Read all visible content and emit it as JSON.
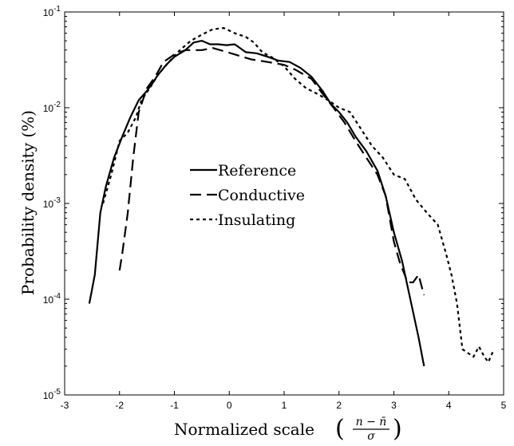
{
  "chart_data": {
    "type": "line",
    "title": "",
    "xlabel": "Normalized scale",
    "xlabel_formula": {
      "numerator": "n − n̄",
      "denominator": "σ"
    },
    "ylabel": "Probability density (%)",
    "xlim": [
      -3,
      5
    ],
    "ylim": [
      1e-05,
      0.1
    ],
    "yscale": "log",
    "grid": false,
    "legend_position": "center-left",
    "x_ticks": [
      "-3",
      "-2",
      "-1",
      "0",
      "1",
      "2",
      "3",
      "4",
      "5"
    ],
    "y_ticks": [
      {
        "base": "10",
        "exp": "-1",
        "value": 0.1
      },
      {
        "base": "10",
        "exp": "-2",
        "value": 0.01
      },
      {
        "base": "10",
        "exp": "-3",
        "value": 0.001
      },
      {
        "base": "10",
        "exp": "-4",
        "value": 0.0001
      },
      {
        "base": "10",
        "exp": "-5",
        "value": 1e-05
      }
    ],
    "series": [
      {
        "name": "Reference",
        "dash": "solid",
        "points": [
          [
            -2.55,
            9e-05
          ],
          [
            -2.45,
            0.00018
          ],
          [
            -2.35,
            0.0008
          ],
          [
            -2.25,
            0.0015
          ],
          [
            -2.1,
            0.003
          ],
          [
            -1.95,
            0.005
          ],
          [
            -1.8,
            0.008
          ],
          [
            -1.65,
            0.012
          ],
          [
            -1.5,
            0.015
          ],
          [
            -1.4,
            0.018
          ],
          [
            -1.3,
            0.022
          ],
          [
            -1.15,
            0.028
          ],
          [
            -1.0,
            0.034
          ],
          [
            -0.8,
            0.04
          ],
          [
            -0.65,
            0.048
          ],
          [
            -0.5,
            0.05
          ],
          [
            -0.35,
            0.046
          ],
          [
            -0.2,
            0.046
          ],
          [
            -0.05,
            0.045
          ],
          [
            0.1,
            0.046
          ],
          [
            0.3,
            0.038
          ],
          [
            0.5,
            0.037
          ],
          [
            0.7,
            0.034
          ],
          [
            0.9,
            0.031
          ],
          [
            1.1,
            0.03
          ],
          [
            1.3,
            0.026
          ],
          [
            1.5,
            0.021
          ],
          [
            1.7,
            0.015
          ],
          [
            1.85,
            0.011
          ],
          [
            2.0,
            0.009
          ],
          [
            2.15,
            0.007
          ],
          [
            2.3,
            0.005
          ],
          [
            2.5,
            0.0035
          ],
          [
            2.7,
            0.0022
          ],
          [
            2.85,
            0.0012
          ],
          [
            3.0,
            0.0005
          ],
          [
            3.15,
            0.00025
          ],
          [
            3.3,
            0.0001
          ],
          [
            3.45,
            4e-05
          ],
          [
            3.55,
            2e-05
          ]
        ]
      },
      {
        "name": "Conductive",
        "dash": "dashed",
        "points": [
          [
            -2.0,
            0.0002
          ],
          [
            -1.95,
            0.0003
          ],
          [
            -1.85,
            0.0008
          ],
          [
            -1.75,
            0.003
          ],
          [
            -1.65,
            0.009
          ],
          [
            -1.5,
            0.016
          ],
          [
            -1.35,
            0.021
          ],
          [
            -1.2,
            0.03
          ],
          [
            -1.0,
            0.036
          ],
          [
            -0.8,
            0.04
          ],
          [
            -0.5,
            0.04
          ],
          [
            -0.3,
            0.042
          ],
          [
            -0.1,
            0.039
          ],
          [
            0.1,
            0.036
          ],
          [
            0.4,
            0.032
          ],
          [
            0.7,
            0.03
          ],
          [
            1.0,
            0.028
          ],
          [
            1.2,
            0.025
          ],
          [
            1.5,
            0.02
          ],
          [
            1.7,
            0.014
          ],
          [
            1.9,
            0.01
          ],
          [
            2.1,
            0.007
          ],
          [
            2.3,
            0.0045
          ],
          [
            2.5,
            0.003
          ],
          [
            2.7,
            0.002
          ],
          [
            2.85,
            0.0012
          ],
          [
            3.0,
            0.0004
          ],
          [
            3.1,
            0.00025
          ],
          [
            3.25,
            0.00015
          ],
          [
            3.35,
            0.00015
          ],
          [
            3.45,
            0.00018
          ],
          [
            3.5,
            0.00014
          ],
          [
            3.55,
            0.00011
          ]
        ]
      },
      {
        "name": "Insulating",
        "dash": "dotted",
        "points": [
          [
            -2.3,
            0.001
          ],
          [
            -2.15,
            0.002
          ],
          [
            -2.0,
            0.0045
          ],
          [
            -1.85,
            0.0055
          ],
          [
            -1.7,
            0.008
          ],
          [
            -1.6,
            0.012
          ],
          [
            -1.45,
            0.016
          ],
          [
            -1.3,
            0.022
          ],
          [
            -1.1,
            0.03
          ],
          [
            -0.9,
            0.04
          ],
          [
            -0.7,
            0.05
          ],
          [
            -0.5,
            0.058
          ],
          [
            -0.3,
            0.066
          ],
          [
            -0.1,
            0.068
          ],
          [
            0.1,
            0.06
          ],
          [
            0.3,
            0.055
          ],
          [
            0.45,
            0.048
          ],
          [
            0.6,
            0.038
          ],
          [
            0.8,
            0.033
          ],
          [
            1.0,
            0.027
          ],
          [
            1.2,
            0.02
          ],
          [
            1.4,
            0.016
          ],
          [
            1.6,
            0.014
          ],
          [
            1.8,
            0.012
          ],
          [
            2.0,
            0.01
          ],
          [
            2.2,
            0.009
          ],
          [
            2.4,
            0.006
          ],
          [
            2.6,
            0.004
          ],
          [
            2.8,
            0.003
          ],
          [
            3.0,
            0.002
          ],
          [
            3.2,
            0.0018
          ],
          [
            3.4,
            0.0011
          ],
          [
            3.6,
            0.0008
          ],
          [
            3.8,
            0.0006
          ],
          [
            3.95,
            0.0003
          ],
          [
            4.05,
            0.00018
          ],
          [
            4.15,
            9e-05
          ],
          [
            4.25,
            3e-05
          ],
          [
            4.45,
            2.5e-05
          ],
          [
            4.55,
            3.2e-05
          ],
          [
            4.65,
            2.5e-05
          ],
          [
            4.72,
            2.2e-05
          ],
          [
            4.8,
            2.8e-05
          ]
        ]
      }
    ]
  }
}
